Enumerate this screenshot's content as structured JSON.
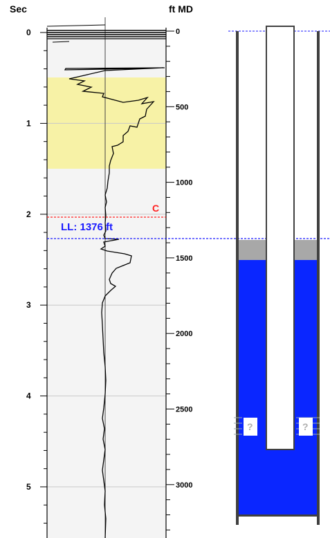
{
  "left_axis": {
    "title": "Sec",
    "ticks": [
      {
        "value": 0,
        "label": "0"
      },
      {
        "value": 1,
        "label": "1"
      },
      {
        "value": 2,
        "label": "2"
      },
      {
        "value": 3,
        "label": "3"
      },
      {
        "value": 4,
        "label": "4"
      },
      {
        "value": 5,
        "label": "5"
      }
    ]
  },
  "right_axis": {
    "title": "ft MD",
    "ticks": [
      {
        "value": 0,
        "label": "0"
      },
      {
        "value": 500,
        "label": "500"
      },
      {
        "value": 1000,
        "label": "1000"
      },
      {
        "value": 1500,
        "label": "1500"
      },
      {
        "value": 2000,
        "label": "2000"
      },
      {
        "value": 2500,
        "label": "2500"
      },
      {
        "value": 3000,
        "label": "3000"
      }
    ]
  },
  "markers": {
    "c": {
      "label": "C",
      "sec": 2.07,
      "color": "#ff2020"
    },
    "ll": {
      "label": "LL: 1376 ft",
      "sec": 2.33,
      "depth_ft": 1376,
      "color": "#1a1aff"
    }
  },
  "highlight_band": {
    "from_sec": 0.52,
    "to_sec": 1.5,
    "color": "#f7f2a6"
  },
  "well": {
    "liquid_level_ft": 1376,
    "gas_zone_bottom_ft": 1510,
    "tubing_bottom_ft": 2770,
    "perforations_ft": 2680,
    "unknown_mark": "?",
    "colors": {
      "fluid": "#0a26ff",
      "gas": "#a8a8a8",
      "casing": "#404040",
      "tubing": "#404040"
    }
  },
  "colors": {
    "panel_bg": "#f4f4f4",
    "grid": "#c8c8c8",
    "trace": "#000000"
  }
}
